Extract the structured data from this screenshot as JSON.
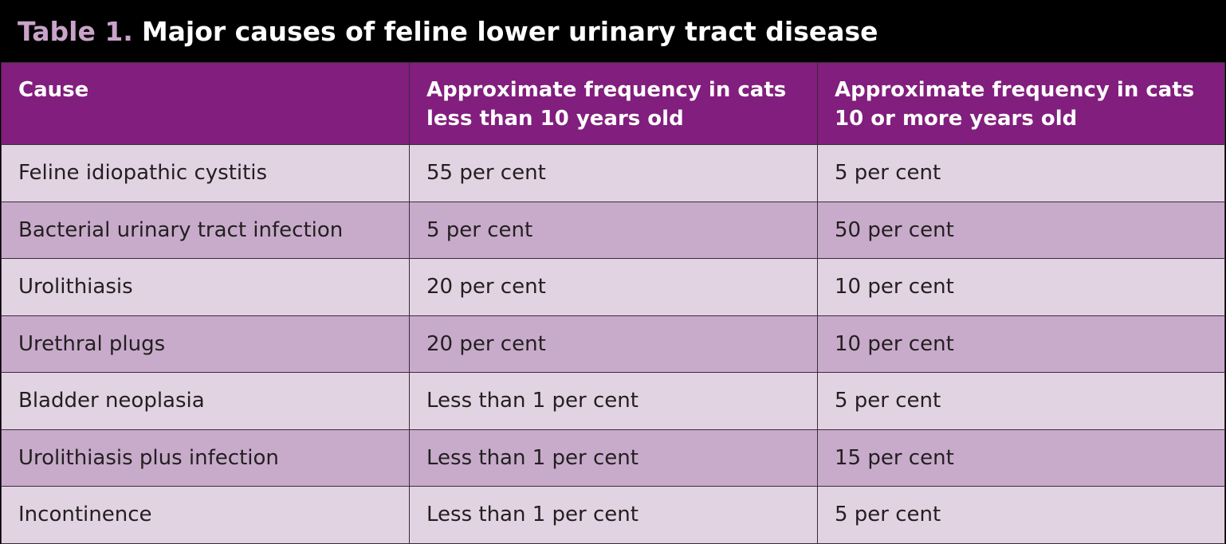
{
  "table": {
    "label": "Table 1.",
    "title": "Major causes of feline lower urinary tract disease",
    "headers": [
      "Cause",
      "Approximate frequency in cats less than 10 years old",
      "Approximate frequency in cats 10 or more years old"
    ],
    "rows": [
      [
        "Feline idiopathic cystitis",
        "55 per cent",
        "5 per cent"
      ],
      [
        "Bacterial urinary tract infection",
        "5 per cent",
        "50 per cent"
      ],
      [
        "Urolithiasis",
        "20 per cent",
        "10 per cent"
      ],
      [
        "Urethral plugs",
        "20 per cent",
        "10 per cent"
      ],
      [
        "Bladder neoplasia",
        "Less than 1 per cent",
        "5 per cent"
      ],
      [
        "Urolithiasis plus infection",
        "Less than 1 per cent",
        "15 per cent"
      ],
      [
        "Incontinence",
        "Less than 1 per cent",
        "5 per cent"
      ]
    ]
  },
  "colors": {
    "title_bar": "#000000",
    "label": "#c9a3c9",
    "header_bg": "#821e7d",
    "row_light": "#e2d3e3",
    "row_dark": "#c8abcb"
  }
}
